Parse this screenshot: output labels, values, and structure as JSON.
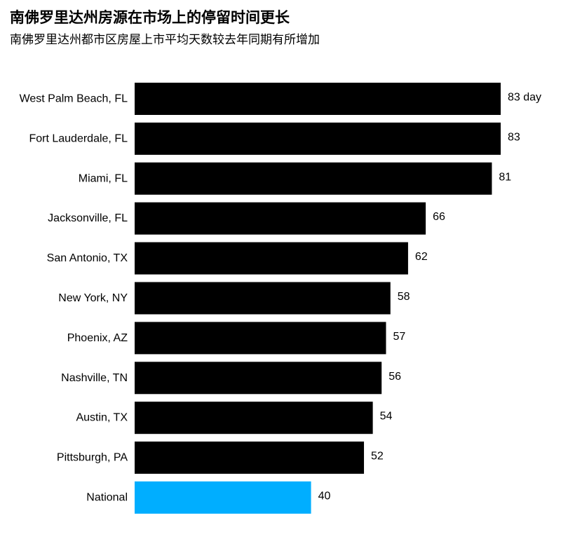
{
  "title": "南佛罗里达州房源在市场上的停留时间更长",
  "subtitle": "南佛罗里达州都市区房屋上市平均天数较去年同期有所增加",
  "chart_data": {
    "type": "bar",
    "orientation": "horizontal",
    "categories": [
      "West Palm Beach, FL",
      "Fort Lauderdale, FL",
      "Miami, FL",
      "Jacksonville, FL",
      "San Antonio, TX",
      "New York, NY",
      "Phoenix, AZ",
      "Nashville, TN",
      "Austin, TX",
      "Pittsburgh, PA",
      "National"
    ],
    "values": [
      83,
      83,
      81,
      66,
      62,
      58,
      57,
      56,
      54,
      52,
      40
    ],
    "value_labels": [
      "83 day",
      "83",
      "81",
      "66",
      "62",
      "58",
      "57",
      "56",
      "54",
      "52",
      "40"
    ],
    "bar_colors": [
      "#000000",
      "#000000",
      "#000000",
      "#000000",
      "#000000",
      "#000000",
      "#000000",
      "#000000",
      "#000000",
      "#000000",
      "#00aeff"
    ],
    "xlim": [
      0,
      83
    ],
    "grid": false,
    "legend": "none"
  }
}
